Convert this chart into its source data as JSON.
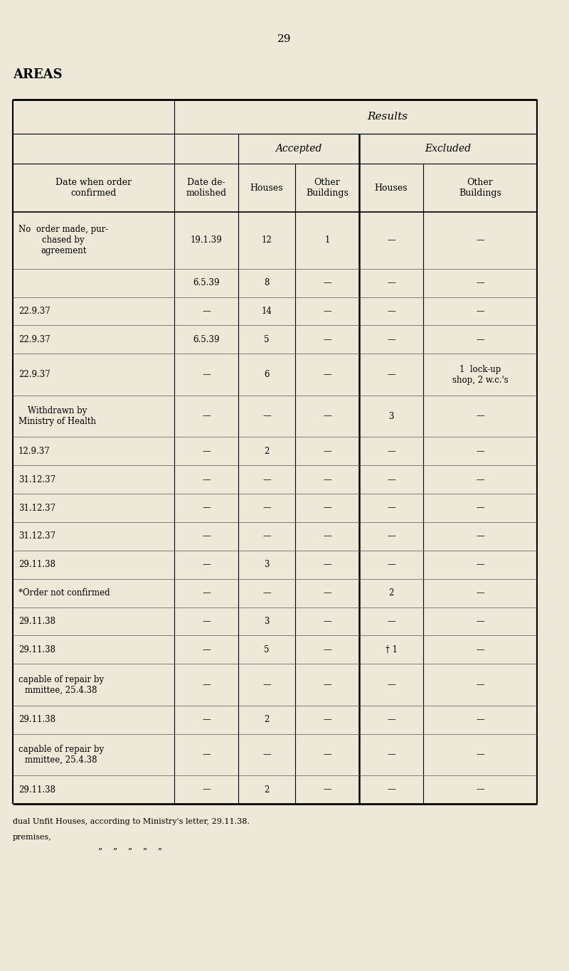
{
  "page_number": "29",
  "page_label": "AREAS",
  "background_color": "#ede8d8",
  "title_fontsize": 11,
  "body_fontsize": 9,
  "data_rows": [
    [
      "No  order made, pur-\nchased by\nagreement",
      "19.1.39",
      "12",
      "1",
      "—",
      "—"
    ],
    [
      "",
      "6.5.39",
      "8",
      "—",
      "—",
      "—"
    ],
    [
      "22.9.37",
      "—",
      "14",
      "—",
      "—",
      "—"
    ],
    [
      "22.9.37",
      "6.5.39",
      "5",
      "—",
      "—",
      "—"
    ],
    [
      "22.9.37",
      "—",
      "6",
      "—",
      "—",
      "1  lock-up\nshop, 2 w.c.'s"
    ],
    [
      "Withdrawn by\nMinistry of Health",
      "—",
      "—",
      "—",
      "3",
      "—"
    ],
    [
      "12.9.37",
      "—",
      "2",
      "—",
      "—",
      "—"
    ],
    [
      "31.12.37",
      "—",
      "—",
      "—",
      "—",
      "—"
    ],
    [
      "31.12.37",
      "—",
      "—",
      "—",
      "—",
      "—"
    ],
    [
      "31.12.37",
      "—",
      "—",
      "—",
      "—",
      "—"
    ],
    [
      "29.11.38",
      "—",
      "3",
      "—",
      "—",
      "—"
    ],
    [
      "*Order not confirmed",
      "—",
      "—",
      "—",
      "2",
      "—"
    ],
    [
      "29.11.38",
      "—",
      "3",
      "—",
      "—",
      "—"
    ],
    [
      "29.11.38",
      "—",
      "5",
      "—",
      "† 1",
      "—"
    ],
    [
      "capable of repair by\nmmittee, 25.4.38",
      "—",
      "—",
      "—",
      "—",
      "—"
    ],
    [
      "29.11.38",
      "—",
      "2",
      "—",
      "—",
      "—"
    ],
    [
      "capable of repair by\nmmittee, 25.4.38",
      "—",
      "—",
      "—",
      "—",
      "—"
    ],
    [
      "29.11.38",
      "—",
      "2",
      "—",
      "—",
      "—"
    ]
  ],
  "footnote1": "dual Unfit Houses, according to Ministry's letter, 29.11.38.",
  "footnote2": "premises,",
  "footnote3": "”    ”    ”    ”    ”"
}
